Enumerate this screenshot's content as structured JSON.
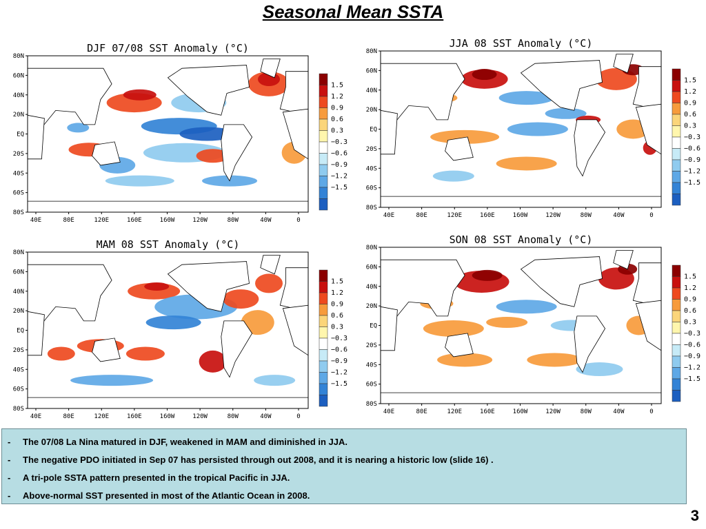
{
  "title": "Seasonal Mean SSTA",
  "panels": [
    {
      "id": "djf",
      "title": "DJF 07/08 SST Anomaly (°C)"
    },
    {
      "id": "jja",
      "title": "JJA 08 SST Anomaly (°C)"
    },
    {
      "id": "mam",
      "title": "MAM 08 SST Anomaly (°C)"
    },
    {
      "id": "son",
      "title": "SON 08 SST Anomaly (°C)"
    }
  ],
  "lat_labels": [
    "80N",
    "60N",
    "40N",
    "20N",
    "EQ",
    "20S",
    "40S",
    "60S",
    "80S"
  ],
  "lon_labels": [
    "40E",
    "80E",
    "120E",
    "160E",
    "160W",
    "120W",
    "80W",
    "40W",
    "0"
  ],
  "colorbar": {
    "labels": [
      "1.5",
      "1.2",
      "0.9",
      "0.6",
      "0.3",
      "−0.3",
      "−0.6",
      "−0.9",
      "−1.2",
      "−1.5"
    ],
    "colors": [
      "#8b0000",
      "#c8100e",
      "#ee4a1f",
      "#f79b3c",
      "#fbd57a",
      "#fff6ad",
      "#ffffff",
      "#c7ebf7",
      "#8fcbef",
      "#5ea8e6",
      "#3383d6",
      "#1c5fc0"
    ]
  },
  "notes": [
    "The 07/08 La Nina matured in DJF, weakened in MAM and diminished in JJA.",
    "The negative PDO initiated in Sep 07 has persisted through out 2008, and it is nearing a historic low (slide 16) .",
    "A tri-pole SSTA pattern presented in the tropical Pacific in JJA.",
    "Above-normal SST presented in most of the Atlantic Ocean  in 2008."
  ],
  "note_bullet": "-",
  "slide_number": "3"
}
